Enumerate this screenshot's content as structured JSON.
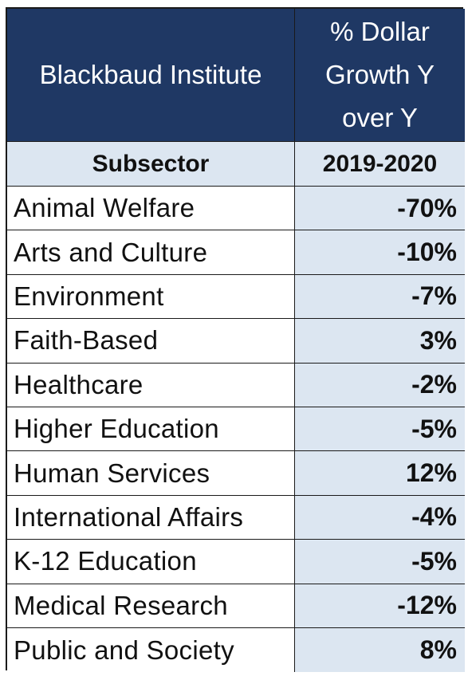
{
  "chart_data": {
    "type": "table",
    "header": {
      "left": "Blackbaud Institute",
      "right": "% Dollar Growth Y over Y"
    },
    "columns": [
      "Subsector",
      "2019-2020"
    ],
    "rows": [
      {
        "subsector": "Animal Welfare",
        "value": "-70%"
      },
      {
        "subsector": "Arts and Culture",
        "value": "-10%"
      },
      {
        "subsector": "Environment",
        "value": "-7%"
      },
      {
        "subsector": "Faith-Based",
        "value": "3%"
      },
      {
        "subsector": "Healthcare",
        "value": "-2%"
      },
      {
        "subsector": "Higher Education",
        "value": "-5%"
      },
      {
        "subsector": "Human Services",
        "value": "12%"
      },
      {
        "subsector": "International Affairs",
        "value": "-4%"
      },
      {
        "subsector": "K-12 Education",
        "value": "-5%"
      },
      {
        "subsector": "Medical Research",
        "value": "-12%"
      },
      {
        "subsector": "Public and Society",
        "value": "8%"
      }
    ],
    "colors": {
      "header_bg": "#1f3864",
      "value_bg": "#dce6f1"
    }
  }
}
